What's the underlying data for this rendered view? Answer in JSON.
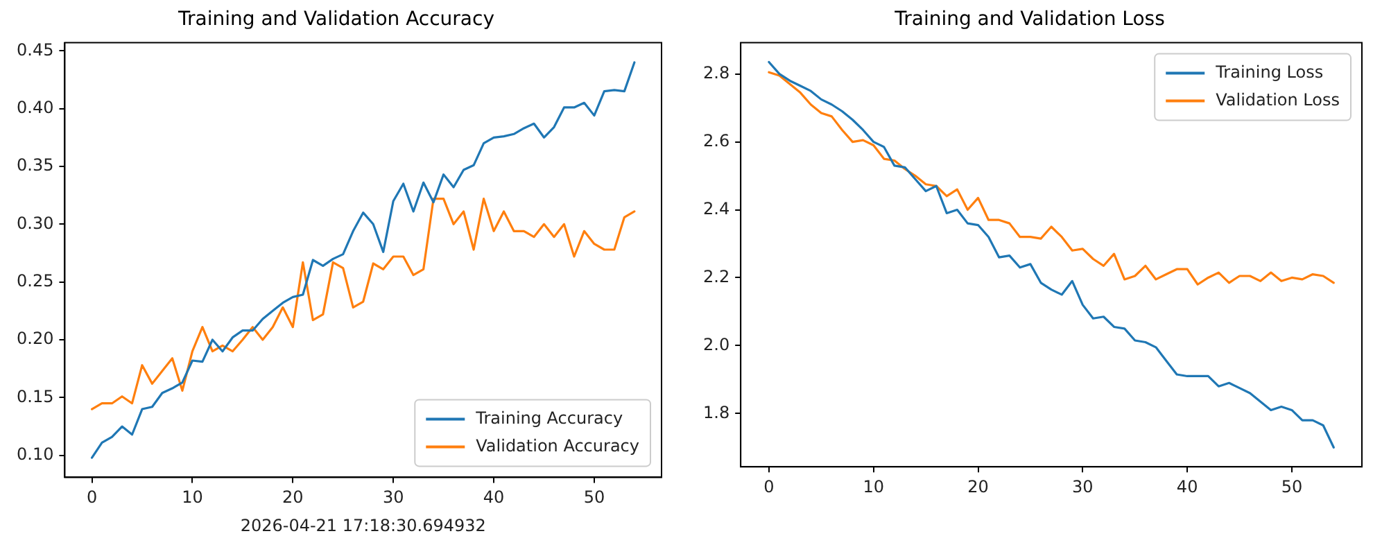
{
  "chart_data": [
    {
      "type": "line",
      "title": "Training and Validation Accuracy",
      "xlabel": "2026-04-21 17:18:30.694932",
      "x": [
        0,
        1,
        2,
        3,
        4,
        5,
        6,
        7,
        8,
        9,
        10,
        11,
        12,
        13,
        14,
        15,
        16,
        17,
        18,
        19,
        20,
        21,
        22,
        23,
        24,
        25,
        26,
        27,
        28,
        29,
        30,
        31,
        32,
        33,
        34,
        35,
        36,
        37,
        38,
        39,
        40,
        41,
        42,
        43,
        44,
        45,
        46,
        47,
        48,
        49,
        50,
        51,
        52,
        53,
        54
      ],
      "series": [
        {
          "name": "Training Accuracy",
          "color": "#1f77b4",
          "values": [
            0.098,
            0.111,
            0.116,
            0.125,
            0.118,
            0.14,
            0.142,
            0.154,
            0.158,
            0.163,
            0.182,
            0.181,
            0.2,
            0.19,
            0.202,
            0.208,
            0.208,
            0.218,
            0.225,
            0.232,
            0.237,
            0.239,
            0.269,
            0.264,
            0.27,
            0.274,
            0.294,
            0.31,
            0.3,
            0.276,
            0.32,
            0.335,
            0.311,
            0.336,
            0.319,
            0.343,
            0.332,
            0.347,
            0.351,
            0.37,
            0.375,
            0.376,
            0.378,
            0.383,
            0.387,
            0.375,
            0.384,
            0.401,
            0.401,
            0.405,
            0.394,
            0.415,
            0.416,
            0.415,
            0.44
          ]
        },
        {
          "name": "Validation Accuracy",
          "color": "#ff7f0e",
          "values": [
            0.14,
            0.145,
            0.145,
            0.151,
            0.145,
            0.178,
            0.162,
            0.173,
            0.184,
            0.156,
            0.19,
            0.211,
            0.19,
            0.195,
            0.19,
            0.2,
            0.211,
            0.2,
            0.211,
            0.228,
            0.211,
            0.267,
            0.217,
            0.222,
            0.267,
            0.262,
            0.228,
            0.233,
            0.266,
            0.261,
            0.272,
            0.272,
            0.256,
            0.261,
            0.322,
            0.322,
            0.3,
            0.311,
            0.278,
            0.322,
            0.294,
            0.311,
            0.294,
            0.294,
            0.289,
            0.3,
            0.289,
            0.3,
            0.272,
            0.294,
            0.283,
            0.278,
            0.278,
            0.306,
            0.311
          ]
        }
      ],
      "xlim": [
        -2.7,
        56.7
      ],
      "xticks": [
        0,
        10,
        20,
        30,
        40,
        50
      ],
      "ylim": [
        0.081,
        0.457
      ],
      "yticks": [
        {
          "value": 0.1,
          "label": "0.10"
        },
        {
          "value": 0.15,
          "label": "0.15"
        },
        {
          "value": 0.2,
          "label": "0.20"
        },
        {
          "value": 0.25,
          "label": "0.25"
        },
        {
          "value": 0.3,
          "label": "0.30"
        },
        {
          "value": 0.35,
          "label": "0.35"
        },
        {
          "value": 0.4,
          "label": "0.40"
        },
        {
          "value": 0.45,
          "label": "0.45"
        }
      ],
      "legend": "bottom right",
      "grid": false,
      "marker": "none",
      "line_style": "solid"
    },
    {
      "type": "line",
      "title": "Training and Validation Loss",
      "x": [
        0,
        1,
        2,
        3,
        4,
        5,
        6,
        7,
        8,
        9,
        10,
        11,
        12,
        13,
        14,
        15,
        16,
        17,
        18,
        19,
        20,
        21,
        22,
        23,
        24,
        25,
        26,
        27,
        28,
        29,
        30,
        31,
        32,
        33,
        34,
        35,
        36,
        37,
        38,
        39,
        40,
        41,
        42,
        43,
        44,
        45,
        46,
        47,
        48,
        49,
        50,
        51,
        52,
        53,
        54
      ],
      "series": [
        {
          "name": "Training Loss",
          "color": "#1f77b4",
          "values": [
            2.835,
            2.8,
            2.78,
            2.765,
            2.75,
            2.725,
            2.71,
            2.69,
            2.665,
            2.635,
            2.6,
            2.585,
            2.53,
            2.525,
            2.49,
            2.455,
            2.47,
            2.39,
            2.4,
            2.36,
            2.355,
            2.32,
            2.26,
            2.265,
            2.23,
            2.24,
            2.185,
            2.165,
            2.15,
            2.19,
            2.12,
            2.08,
            2.085,
            2.055,
            2.05,
            2.015,
            2.01,
            1.995,
            1.955,
            1.915,
            1.91,
            1.91,
            1.91,
            1.88,
            1.89,
            1.875,
            1.86,
            1.835,
            1.81,
            1.82,
            1.81,
            1.78,
            1.78,
            1.765,
            1.7
          ]
        },
        {
          "name": "Validation Loss",
          "color": "#ff7f0e",
          "values": [
            2.805,
            2.795,
            2.77,
            2.745,
            2.71,
            2.685,
            2.675,
            2.635,
            2.6,
            2.605,
            2.59,
            2.55,
            2.545,
            2.52,
            2.5,
            2.475,
            2.47,
            2.44,
            2.46,
            2.4,
            2.435,
            2.37,
            2.37,
            2.36,
            2.32,
            2.32,
            2.315,
            2.35,
            2.32,
            2.28,
            2.285,
            2.255,
            2.235,
            2.27,
            2.195,
            2.205,
            2.235,
            2.195,
            2.21,
            2.225,
            2.225,
            2.18,
            2.2,
            2.215,
            2.185,
            2.205,
            2.205,
            2.19,
            2.215,
            2.19,
            2.2,
            2.195,
            2.21,
            2.205,
            2.185
          ]
        }
      ],
      "xlim": [
        -2.7,
        56.7
      ],
      "xticks": [
        0,
        10,
        20,
        30,
        40,
        50
      ],
      "ylim": [
        1.643,
        2.892
      ],
      "yticks": [
        {
          "value": 1.8,
          "label": "1.8"
        },
        {
          "value": 2.0,
          "label": "2.0"
        },
        {
          "value": 2.2,
          "label": "2.2"
        },
        {
          "value": 2.4,
          "label": "2.4"
        },
        {
          "value": 2.6,
          "label": "2.6"
        },
        {
          "value": 2.8,
          "label": "2.8"
        }
      ],
      "legend": "top right",
      "grid": false,
      "marker": "none",
      "line_style": "solid"
    }
  ]
}
